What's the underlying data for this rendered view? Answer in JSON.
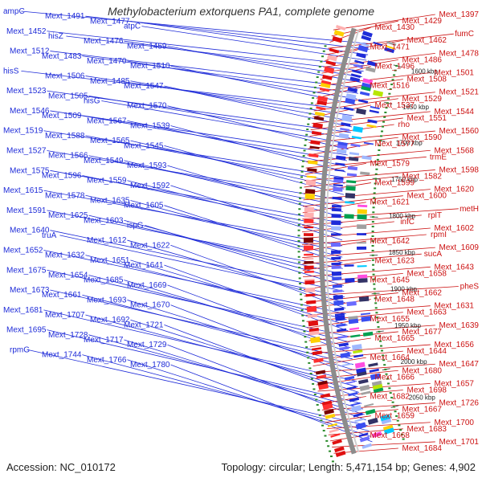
{
  "title": "Methylobacterium extorquens PA1, complete genome",
  "footer": {
    "accession": "Accession: NC_010172",
    "stats": "Topology: circular; Length: 5,471,154 bp; Genes: 4,902"
  },
  "colors": {
    "forward": "#1e2bd8",
    "reverse": "#cc1111",
    "backbone": "#8c8c8c",
    "tick": "#2a8a2a"
  },
  "ticks": [
    "1600 kbp",
    "1650 kbp",
    "1700 kbp",
    "1750 kbp",
    "1800 kbp",
    "1850 kbp",
    "1900 kbp",
    "1950 kbp",
    "2000 kbp",
    "2050 kbp"
  ],
  "forward_labels": [
    "ampC",
    "Mext_1491",
    "Mext_1477",
    "atpC",
    "Mext_1452",
    "hisZ",
    "Mext_1476",
    "Mext_1459",
    "Mext_1512",
    "Mext_1483",
    "Mext_1470",
    "Mext_1510",
    "hisS",
    "Mext_1506",
    "Mext_1485",
    "Mext_1547",
    "Mext_1523",
    "Mext_1505",
    "hisG",
    "Mext_1570",
    "Mext_1546",
    "Mext_1509",
    "Mext_1567",
    "Mext_1539",
    "Mext_1519",
    "Mext_1588",
    "Mext_1565",
    "Mext_1545",
    "Mext_1527",
    "Mext_1566",
    "Mext_1549",
    "Mext_1593",
    "Mext_1575",
    "Mext_1596",
    "Mext_1559",
    "Mext_1592",
    "Mext_1615",
    "Mext_1578",
    "Mext_1635",
    "Mext_1605",
    "Mext_1591",
    "Mext_1625",
    "Mext_1603",
    "ispG",
    "Mext_1640",
    "truA",
    "Mext_1612",
    "Mext_1622",
    "Mext_1652",
    "Mext_1632",
    "Mext_1651",
    "Mext_1641",
    "Mext_1675",
    "Mext_1654",
    "Mext_1685",
    "Mext_1669",
    "Mext_1673",
    "Mext_1661",
    "Mext_1693",
    "Mext_1670",
    "Mext_1681",
    "Mext_1707",
    "Mext_1692",
    "Mext_1721",
    "Mext_1695",
    "Mext_1728",
    "Mext_1717",
    "Mext_1729",
    "rpmG",
    "Mext_1744",
    "Mext_1766",
    "Mext_1780"
  ],
  "reverse_labels": [
    "Mext_1397",
    "Mext_1429",
    "Mext_1430",
    "fumC",
    "Mext_1462",
    "Mext_1471",
    "Mext_1478",
    "Mext_1486",
    "Mext_1496",
    "Mext_1501",
    "Mext_1508",
    "Mext_1516",
    "Mext_1521",
    "Mext_1529",
    "Mext_1537",
    "Mext_1544",
    "Mext_1551",
    "rho",
    "Mext_1560",
    "Mext_1590",
    "Mext_1577",
    "Mext_1568",
    "trmE",
    "Mext_1579",
    "Mext_1598",
    "Mext_1582",
    "Mext_1599",
    "Mext_1620",
    "Mext_1600",
    "Mext_1621",
    "metH",
    "rplT",
    "infC",
    "Mext_1602",
    "rpmI",
    "Mext_1642",
    "Mext_1609",
    "sucA",
    "Mext_1623",
    "Mext_1643",
    "Mext_1658",
    "Mext_1645",
    "pheS",
    "Mext_1662",
    "Mext_1648",
    "Mext_1631",
    "Mext_1663",
    "Mext_1655",
    "Mext_1639",
    "Mext_1677",
    "Mext_1665",
    "Mext_1656",
    "Mext_1644",
    "Mext_1664",
    "Mext_1647",
    "Mext_1680",
    "Mext_1666",
    "Mext_1657",
    "Mext_1698",
    "Mext_1682",
    "Mext_1726",
    "Mext_1667",
    "Mext_1659",
    "Mext_1700",
    "Mext_1683",
    "Mext_1668",
    "Mext_1701",
    "Mext_1684"
  ]
}
